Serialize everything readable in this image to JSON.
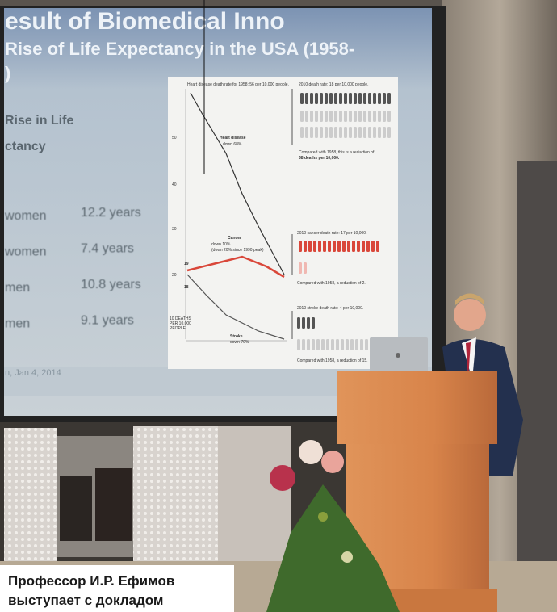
{
  "slide": {
    "title": "esult of Biomedical Inno",
    "subtitle": "Rise of Life Expectancy in the USA (1958-",
    "subtitle_end": ")",
    "heading": [
      "Rise in Life",
      "ctancy"
    ],
    "rows": [
      [
        "women",
        "12.2 years"
      ],
      [
        "women",
        "7.4 years"
      ],
      [
        "men",
        "10.8 years"
      ],
      [
        "men",
        "9.1 years"
      ]
    ],
    "source": "n, Jan 4, 2014",
    "figure": {
      "heart_top": "Heart disease death rate for 1958: 56 per 10,000 people.",
      "heart_2010": "2010 death rate: 18 per 10,000 people.",
      "heart_compare": "Compared with 1958, this is a reduction of",
      "heart_compare2": "38 deaths per 10,000.",
      "heart_label": "Heart disease",
      "heart_down": "down 68%",
      "cancer_label": "Cancer",
      "cancer_down": "down 10%",
      "cancer_down2": "(down 20% since 1990 peak)",
      "cancer_start": "19",
      "stroke_start": "18",
      "cancer_2010": "2010 cancer death rate: 17 per 10,000.",
      "cancer_compare": "Compared with 1958, a reduction of 2.",
      "unit": [
        "10 DEATHS",
        "PER 10,000",
        "PEOPLE"
      ],
      "stroke_label": "Stroke",
      "stroke_down": "down 79%",
      "stroke_2010": "2010 stroke death rate: 4 per 10,000.",
      "stroke_compare": "Compared with 1958, a reduction of 15.",
      "axis": [
        "50",
        "40",
        "30",
        "20"
      ]
    }
  },
  "caption": [
    "Профессор И.Р. Ефимов",
    "выступает с докладом"
  ]
}
